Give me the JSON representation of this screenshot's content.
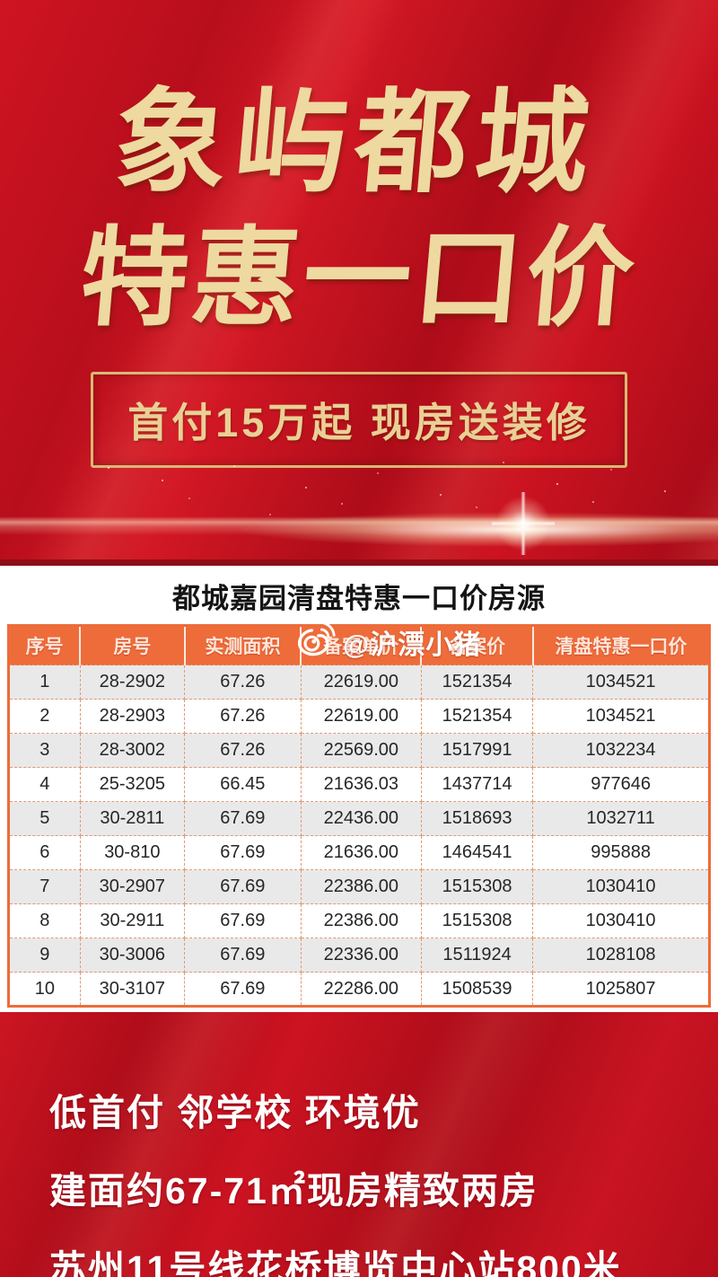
{
  "header": {
    "title_line1": "象屿都城",
    "title_line2": "特惠一口价",
    "banner_text": "首付15万起 现房送装修"
  },
  "watermark": {
    "icon": "weibo-icon",
    "handle": "@沪漂小猪"
  },
  "table_section": {
    "title": "都城嘉园清盘特惠一口价房源",
    "columns": [
      "序号",
      "房号",
      "实测面积",
      "备案单价",
      "备案价",
      "清盘特惠一口价"
    ],
    "rows": [
      [
        "1",
        "28-2902",
        "67.26",
        "22619.00",
        "1521354",
        "1034521"
      ],
      [
        "2",
        "28-2903",
        "67.26",
        "22619.00",
        "1521354",
        "1034521"
      ],
      [
        "3",
        "28-3002",
        "67.26",
        "22569.00",
        "1517991",
        "1032234"
      ],
      [
        "4",
        "25-3205",
        "66.45",
        "21636.03",
        "1437714",
        "977646"
      ],
      [
        "5",
        "30-2811",
        "67.69",
        "22436.00",
        "1518693",
        "1032711"
      ],
      [
        "6",
        "30-810",
        "67.69",
        "21636.00",
        "1464541",
        "995888"
      ],
      [
        "7",
        "30-2907",
        "67.69",
        "22386.00",
        "1515308",
        "1030410"
      ],
      [
        "8",
        "30-2911",
        "67.69",
        "22386.00",
        "1515308",
        "1030410"
      ],
      [
        "9",
        "30-3006",
        "67.69",
        "22336.00",
        "1511924",
        "1028108"
      ],
      [
        "10",
        "30-3107",
        "67.69",
        "22286.00",
        "1508539",
        "1025807"
      ]
    ]
  },
  "footer": {
    "lines": [
      "低首付 邻学校 环境优",
      "建面约67-71㎡现房精致两房",
      "苏州11号线花桥博览中心站800米"
    ]
  },
  "colors": {
    "background_red": "#c3101e",
    "gold_text": "#eed9a0",
    "banner_border_gold": "#d9b872",
    "table_header_orange": "#ee6c3a",
    "row_alt_gray": "#e9e9e9",
    "table_title_black": "#141414",
    "footer_white": "#ffffff"
  }
}
